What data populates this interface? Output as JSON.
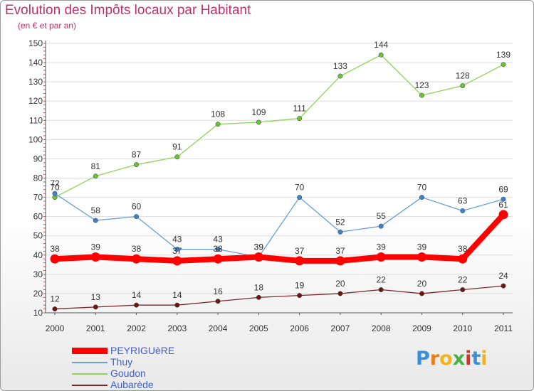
{
  "title": "Evolution des Impôts locaux par Habitant",
  "subtitle": "(en € et par an)",
  "logo": {
    "text": "Proxiti",
    "letter_colors": [
      "#3a8fd8",
      "#e87e1c",
      "#f2b418",
      "#49b04a",
      "#d6342b",
      "#3a8fd8",
      "#f2b418"
    ]
  },
  "colors": {
    "title": "#c0306b",
    "legend_text": "#3a5fd8",
    "grid": "#dddddd",
    "axis": "#555555"
  },
  "chart_data": {
    "type": "line",
    "title": "Evolution des Impôts locaux par Habitant",
    "subtitle": "(en € et par an)",
    "xlabel": "",
    "ylabel": "",
    "x": [
      "2000",
      "2001",
      "2002",
      "2003",
      "2004",
      "2005",
      "2006",
      "2007",
      "2008",
      "2009",
      "2010",
      "2011"
    ],
    "ylim": [
      10,
      150
    ],
    "yticks": [
      10,
      20,
      30,
      40,
      50,
      60,
      70,
      80,
      90,
      100,
      110,
      120,
      130,
      140,
      150
    ],
    "grid": "horizontal",
    "legend_position": "bottom-left",
    "series": [
      {
        "name": "Goudon",
        "color": "#8fd35a",
        "marker": "#6cc23a",
        "emphasis": false,
        "values": [
          70,
          81,
          87,
          91,
          108,
          109,
          111,
          133,
          144,
          123,
          128,
          139
        ]
      },
      {
        "name": "Thuy",
        "color": "#6a9fd4",
        "marker": "#3d82cc",
        "emphasis": false,
        "values": [
          72,
          58,
          60,
          43,
          43,
          39,
          70,
          52,
          55,
          70,
          63,
          69
        ]
      },
      {
        "name": "Aubarède",
        "color": "#7a2a2a",
        "marker": "#6b1515",
        "emphasis": false,
        "values": [
          12,
          13,
          14,
          14,
          16,
          18,
          19,
          20,
          22,
          20,
          22,
          24
        ]
      },
      {
        "name": "PEYRIGUèRE",
        "color": "#ff0000",
        "marker": "#ff0000",
        "emphasis": true,
        "values": [
          38,
          39,
          38,
          37,
          38,
          39,
          37,
          37,
          39,
          39,
          38,
          61
        ]
      }
    ],
    "legend_order": [
      "PEYRIGUèRE",
      "Thuy",
      "Goudon",
      "Aubarède"
    ]
  }
}
